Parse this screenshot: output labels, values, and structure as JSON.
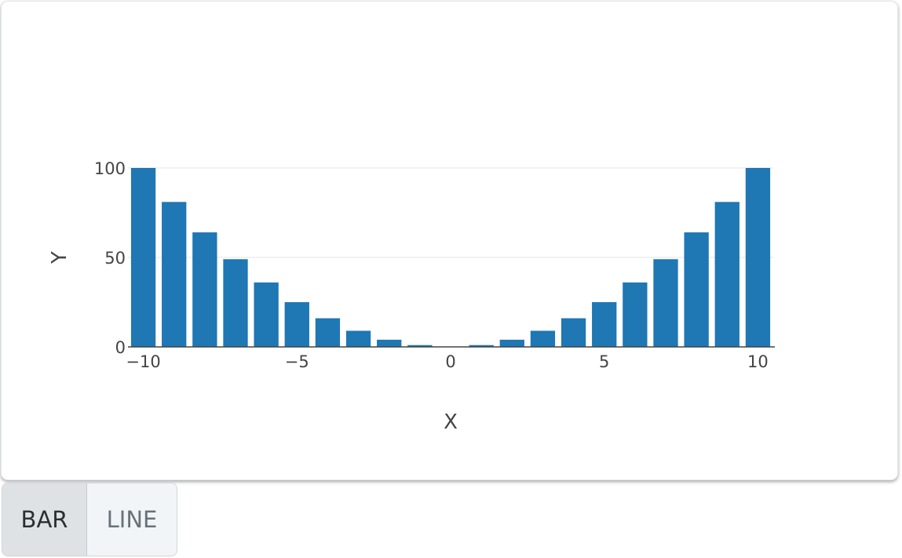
{
  "chart_data": {
    "type": "bar",
    "x": [
      -10,
      -9,
      -8,
      -7,
      -6,
      -5,
      -4,
      -3,
      -2,
      -1,
      0,
      1,
      2,
      3,
      4,
      5,
      6,
      7,
      8,
      9,
      10
    ],
    "values": [
      100,
      81,
      64,
      49,
      36,
      25,
      16,
      9,
      4,
      1,
      0,
      1,
      4,
      9,
      16,
      25,
      36,
      49,
      64,
      81,
      100
    ],
    "xlabel": "X",
    "ylabel": "Y",
    "xlim": [
      -10.5,
      10.5
    ],
    "ylim": [
      0,
      100
    ],
    "xticks": [
      -10,
      -5,
      0,
      5,
      10
    ],
    "xtick_labels": [
      "−10",
      "−5",
      "0",
      "5",
      "10"
    ],
    "yticks": [
      0,
      50,
      100
    ],
    "ytick_labels": [
      "0",
      "50",
      "100"
    ],
    "bar_color": "#1f77b4",
    "grid": true
  },
  "toggle": {
    "bar_label": "BAR",
    "line_label": "LINE",
    "selected": "BAR"
  }
}
